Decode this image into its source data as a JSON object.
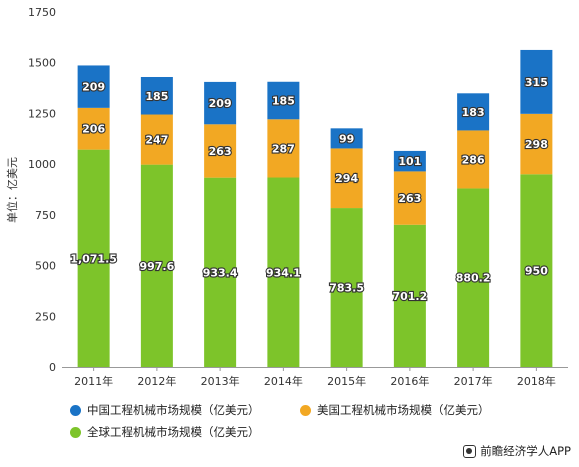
{
  "chart_data": {
    "type": "bar",
    "stacked": true,
    "categories": [
      "2011年",
      "2012年",
      "2013年",
      "2014年",
      "2015年",
      "2016年",
      "2017年",
      "2018年"
    ],
    "series": [
      {
        "name": "全球工程机械市场规模（亿美元）",
        "color": "#7dc42a",
        "values": [
          1071.5,
          997.6,
          933.4,
          934.1,
          783.5,
          701.2,
          880.2,
          950
        ],
        "labels": [
          "1,071.5",
          "997.6",
          "933.4",
          "934.1",
          "783.5",
          "701.2",
          "880.2",
          "950"
        ]
      },
      {
        "name": "美国工程机械市场规模（亿美元）",
        "color": "#f2a823",
        "values": [
          206,
          247,
          263,
          287,
          294,
          263,
          286,
          298
        ],
        "labels": [
          "206",
          "247",
          "263",
          "287",
          "294",
          "263",
          "286",
          "298"
        ]
      },
      {
        "name": "中国工程机械市场规模（亿美元）",
        "color": "#1a73c6",
        "values": [
          209,
          185,
          209,
          185,
          99,
          101,
          183,
          315
        ],
        "labels": [
          "209",
          "185",
          "209",
          "185",
          "99",
          "101",
          "183",
          "315"
        ]
      }
    ],
    "ylabel": "单位：亿美元",
    "ylim": [
      0,
      1750
    ],
    "yticks": [
      0,
      250,
      500,
      750,
      1000,
      1250,
      1500,
      1750
    ],
    "grid": false,
    "legend_position": "bottom"
  },
  "legend": {
    "china": "中国工程机械市场规模（亿美元）",
    "usa": "美国工程机械市场规模（亿美元）",
    "global": "全球工程机械市场规模（亿美元）"
  },
  "colors": {
    "global": "#7dc42a",
    "usa": "#f2a823",
    "china": "#1a73c6"
  },
  "brand": {
    "text": "前瞻经济学人APP"
  }
}
